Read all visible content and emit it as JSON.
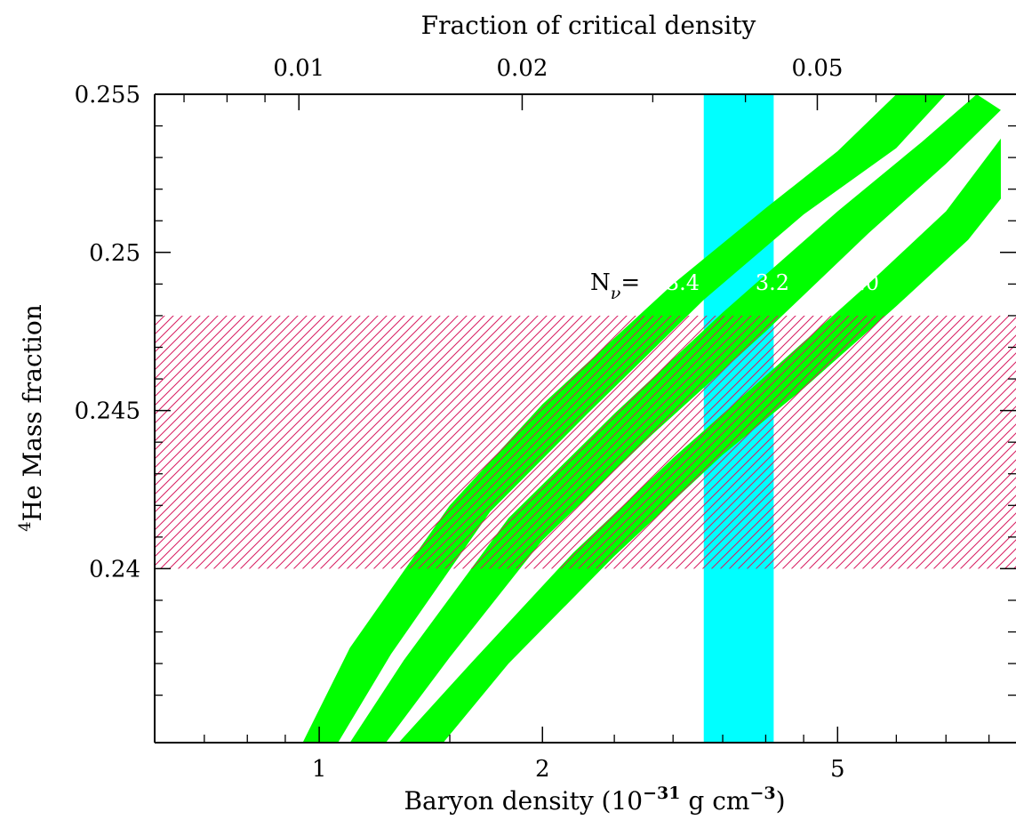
{
  "chart_data": {
    "type": "area",
    "title": "",
    "xlabel": {
      "prefix": "Baryon density (10",
      "exponent1": "−31",
      "middle": " g cm",
      "exponent2": "−3",
      "suffix": ")"
    },
    "x2label": "Fraction of critical density",
    "ylabel": {
      "superscript": "4",
      "text": "He Mass fraction"
    },
    "xscale": "log",
    "xlim": [
      0.6,
      8.7
    ],
    "ylim": [
      0.2345,
      0.255
    ],
    "xticks": [
      {
        "value": 1,
        "label": "1"
      },
      {
        "value": 2,
        "label": "2"
      },
      {
        "value": 5,
        "label": "5"
      }
    ],
    "x2ticks": [
      {
        "value": 0.01,
        "label": "0.01"
      },
      {
        "value": 0.02,
        "label": "0.02"
      },
      {
        "value": 0.05,
        "label": "0.05"
      }
    ],
    "x2_per_x": 0.01065,
    "yticks": [
      {
        "value": 0.24,
        "label": "0.24"
      },
      {
        "value": 0.245,
        "label": "0.245"
      },
      {
        "value": 0.25,
        "label": "0.25"
      },
      {
        "value": 0.255,
        "label": "0.255"
      }
    ],
    "observed_helium_band": {
      "y_range": [
        0.24,
        0.248
      ],
      "color": "#d81b60",
      "style": "hatched"
    },
    "baryon_density_band": {
      "x_range": [
        3.3,
        4.1
      ],
      "color": "#00ffff"
    },
    "nu_label": {
      "text": "N",
      "subscript": "ν",
      "suffix": "="
    },
    "series": [
      {
        "name": "3.4",
        "color": "#00ff00",
        "upper": [
          [
            0.95,
            0.2345
          ],
          [
            1.1,
            0.2375
          ],
          [
            1.5,
            0.242
          ],
          [
            2.0,
            0.2452
          ],
          [
            3.0,
            0.249
          ],
          [
            4.0,
            0.2514
          ],
          [
            5.0,
            0.2532
          ],
          [
            6.0,
            0.255
          ]
        ],
        "lower": [
          [
            1.06,
            0.2345
          ],
          [
            1.25,
            0.2373
          ],
          [
            1.7,
            0.2418
          ],
          [
            2.3,
            0.2449
          ],
          [
            3.3,
            0.2485
          ],
          [
            4.5,
            0.2512
          ],
          [
            6.0,
            0.2533
          ],
          [
            7.0,
            0.255
          ]
        ]
      },
      {
        "name": "3.2",
        "color": "#00ff00",
        "upper": [
          [
            1.1,
            0.2345
          ],
          [
            1.3,
            0.2371
          ],
          [
            1.8,
            0.2416
          ],
          [
            2.5,
            0.2449
          ],
          [
            3.5,
            0.2481
          ],
          [
            5.0,
            0.2513
          ],
          [
            6.5,
            0.2535
          ],
          [
            7.7,
            0.255
          ]
        ],
        "lower": [
          [
            1.23,
            0.2345
          ],
          [
            1.5,
            0.2372
          ],
          [
            2.0,
            0.2409
          ],
          [
            2.8,
            0.2442
          ],
          [
            4.0,
            0.2475
          ],
          [
            5.5,
            0.2506
          ],
          [
            7.0,
            0.2528
          ],
          [
            8.3,
            0.2545
          ]
        ]
      },
      {
        "name": "3.0",
        "color": "#00ff00",
        "upper": [
          [
            1.28,
            0.2345
          ],
          [
            1.6,
            0.237
          ],
          [
            2.2,
            0.2405
          ],
          [
            3.0,
            0.2435
          ],
          [
            4.0,
            0.2461
          ],
          [
            5.5,
            0.249
          ],
          [
            7.0,
            0.2513
          ],
          [
            8.3,
            0.2536
          ]
        ],
        "lower": [
          [
            1.47,
            0.2345
          ],
          [
            1.8,
            0.237
          ],
          [
            2.5,
            0.2404
          ],
          [
            3.5,
            0.2436
          ],
          [
            4.5,
            0.2457
          ],
          [
            6.0,
            0.2483
          ],
          [
            7.5,
            0.2504
          ],
          [
            8.3,
            0.2517
          ]
        ]
      }
    ]
  }
}
